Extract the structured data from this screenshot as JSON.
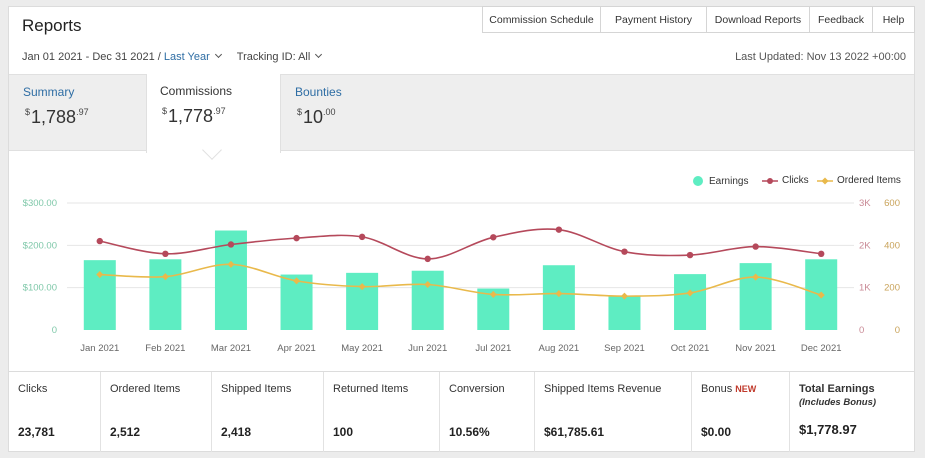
{
  "title": "Reports",
  "nav": [
    "Commission Schedule",
    "Payment History",
    "Download Reports",
    "Feedback",
    "Help"
  ],
  "filters": {
    "date_range": "Jan 01 2021 - Dec 31 2021 /",
    "preset": "Last Year",
    "tracking": "Tracking ID: All"
  },
  "last_updated": "Last Updated: Nov 13 2022 +00:00",
  "tabs": [
    {
      "label": "Summary",
      "currency": "$",
      "whole": "1,788",
      "cents": ".97"
    },
    {
      "label": "Commissions",
      "currency": "$",
      "whole": "1,778",
      "cents": ".97"
    },
    {
      "label": "Bounties",
      "currency": "$",
      "whole": "10",
      "cents": ".00"
    }
  ],
  "legend": {
    "earnings": "Earnings",
    "clicks": "Clicks",
    "ordered": "Ordered Items"
  },
  "colors": {
    "earnings": "#5eedc2",
    "clicks": "#b5495b",
    "ordered": "#e9b94b",
    "link": "#2e6da4"
  },
  "chart_data": {
    "type": "bar",
    "categories": [
      "Jan 2021",
      "Feb 2021",
      "Mar 2021",
      "Apr 2021",
      "May 2021",
      "Jun 2021",
      "Jul 2021",
      "Aug 2021",
      "Sep 2021",
      "Oct 2021",
      "Nov 2021",
      "Dec 2021"
    ],
    "y_left": {
      "ticks": [
        "$300.00",
        "$200.00",
        "$100.00",
        "0"
      ],
      "range": [
        0,
        300
      ]
    },
    "y_right_1": {
      "ticks": [
        "3K",
        "2K",
        "1K",
        "0"
      ],
      "range": [
        0,
        3000
      ]
    },
    "y_right_2": {
      "ticks": [
        "600",
        "400",
        "200",
        "0"
      ],
      "range": [
        0,
        600
      ]
    },
    "series": [
      {
        "name": "Earnings",
        "type": "bar",
        "axis": "left",
        "values": [
          165,
          167,
          235,
          131,
          135,
          140,
          98,
          153,
          80,
          132,
          158,
          167
        ]
      },
      {
        "name": "Clicks",
        "type": "line",
        "axis": "right_1",
        "values": [
          2100,
          1800,
          2020,
          2170,
          2200,
          1680,
          2190,
          2370,
          1850,
          1770,
          1970,
          1800
        ]
      },
      {
        "name": "Ordered Items",
        "type": "line",
        "axis": "right_2",
        "values": [
          262,
          252,
          310,
          232,
          205,
          215,
          168,
          172,
          160,
          175,
          250,
          165
        ]
      }
    ],
    "grid": true,
    "legend_position": "top-right"
  },
  "stats": [
    {
      "label": "Clicks",
      "value": "23,781"
    },
    {
      "label": "Ordered Items",
      "value": "2,512"
    },
    {
      "label": "Shipped Items",
      "value": "2,418"
    },
    {
      "label": "Returned Items",
      "value": "100"
    },
    {
      "label": "Conversion",
      "value": "10.56%"
    },
    {
      "label": "Shipped Items Revenue",
      "value": "$61,785.61"
    },
    {
      "label": "Bonus",
      "badge": "NEW",
      "value": "$0.00"
    },
    {
      "label": "Total Earnings",
      "sublabel": "(Includes Bonus)",
      "value": "$1,778.97"
    }
  ]
}
